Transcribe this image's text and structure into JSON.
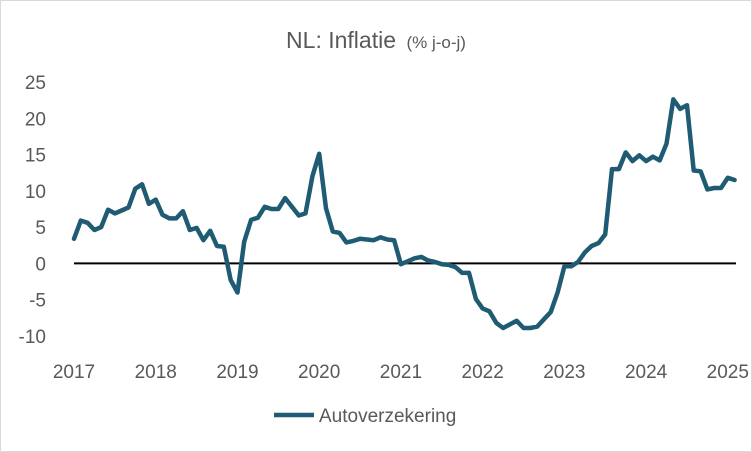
{
  "colors": {
    "series": "#1f5c74",
    "zero_line": "#000000",
    "text": "#595959",
    "border": "#d9d9d9"
  },
  "chart_data": {
    "type": "line",
    "title": "NL: Inflatie",
    "subtitle": "(% j-o-j)",
    "xlabel": "",
    "ylabel": "",
    "x_tick_labels": [
      "2017",
      "2018",
      "2019",
      "2020",
      "2021",
      "2022",
      "2023",
      "2024",
      "2025"
    ],
    "x_ticks": [
      2017,
      2018,
      2019,
      2020,
      2021,
      2022,
      2023,
      2024,
      2025
    ],
    "y_tick_labels": [
      "25",
      "20",
      "15",
      "10",
      "5",
      "0",
      "-5",
      "-10"
    ],
    "y_ticks": [
      25,
      20,
      15,
      10,
      5,
      0,
      -5,
      -10
    ],
    "xlim": [
      2017,
      2025.1
    ],
    "ylim": [
      -10,
      25
    ],
    "grid": false,
    "zero_line": true,
    "legend_position": "bottom",
    "series": [
      {
        "name": "Autoverzekering",
        "x": [
          2017.0,
          2017.083,
          2017.167,
          2017.25,
          2017.333,
          2017.417,
          2017.5,
          2017.583,
          2017.667,
          2017.75,
          2017.833,
          2017.917,
          2018.0,
          2018.083,
          2018.167,
          2018.25,
          2018.333,
          2018.417,
          2018.5,
          2018.583,
          2018.667,
          2018.75,
          2018.833,
          2018.917,
          2019.0,
          2019.083,
          2019.167,
          2019.25,
          2019.333,
          2019.417,
          2019.5,
          2019.583,
          2019.667,
          2019.75,
          2019.833,
          2019.917,
          2020.0,
          2020.083,
          2020.167,
          2020.25,
          2020.333,
          2020.417,
          2020.5,
          2020.583,
          2020.667,
          2020.75,
          2020.833,
          2020.917,
          2021.0,
          2021.083,
          2021.167,
          2021.25,
          2021.333,
          2021.417,
          2021.5,
          2021.583,
          2021.667,
          2021.75,
          2021.833,
          2021.917,
          2022.0,
          2022.083,
          2022.167,
          2022.25,
          2022.333,
          2022.417,
          2022.5,
          2022.583,
          2022.667,
          2022.75,
          2022.833,
          2022.917,
          2023.0,
          2023.083,
          2023.167,
          2023.25,
          2023.333,
          2023.417,
          2023.5,
          2023.583,
          2023.667,
          2023.75,
          2023.833,
          2023.917,
          2024.0,
          2024.083,
          2024.167,
          2024.25,
          2024.333,
          2024.417,
          2024.5,
          2024.583,
          2024.667,
          2024.75,
          2024.833,
          2024.917,
          2025.0,
          2025.083
        ],
        "values": [
          3.4,
          5.9,
          5.6,
          4.6,
          5.0,
          7.4,
          6.9,
          7.3,
          7.7,
          10.3,
          10.9,
          8.2,
          8.8,
          6.7,
          6.2,
          6.2,
          7.2,
          4.6,
          4.9,
          3.2,
          4.5,
          2.4,
          2.3,
          -2.3,
          -4.0,
          3.0,
          6.0,
          6.3,
          7.8,
          7.5,
          7.5,
          9.0,
          7.8,
          6.6,
          6.9,
          12.0,
          15.1,
          7.6,
          4.4,
          4.2,
          2.9,
          3.1,
          3.4,
          3.3,
          3.2,
          3.6,
          3.3,
          3.2,
          -0.1,
          0.3,
          0.7,
          0.9,
          0.4,
          0.2,
          -0.1,
          -0.2,
          -0.5,
          -1.3,
          -1.3,
          -4.9,
          -6.2,
          -6.6,
          -8.2,
          -8.9,
          -8.4,
          -7.9,
          -8.9,
          -8.9,
          -8.7,
          -7.7,
          -6.7,
          -4.0,
          -0.4,
          -0.4,
          0.2,
          1.5,
          2.4,
          2.8,
          4.0,
          13.0,
          13.0,
          15.3,
          14.1,
          14.9,
          14.1,
          14.7,
          14.2,
          16.5,
          22.6,
          21.3,
          21.8,
          12.8,
          12.7,
          10.2,
          10.4,
          10.4,
          11.8,
          11.5
        ]
      }
    ]
  }
}
